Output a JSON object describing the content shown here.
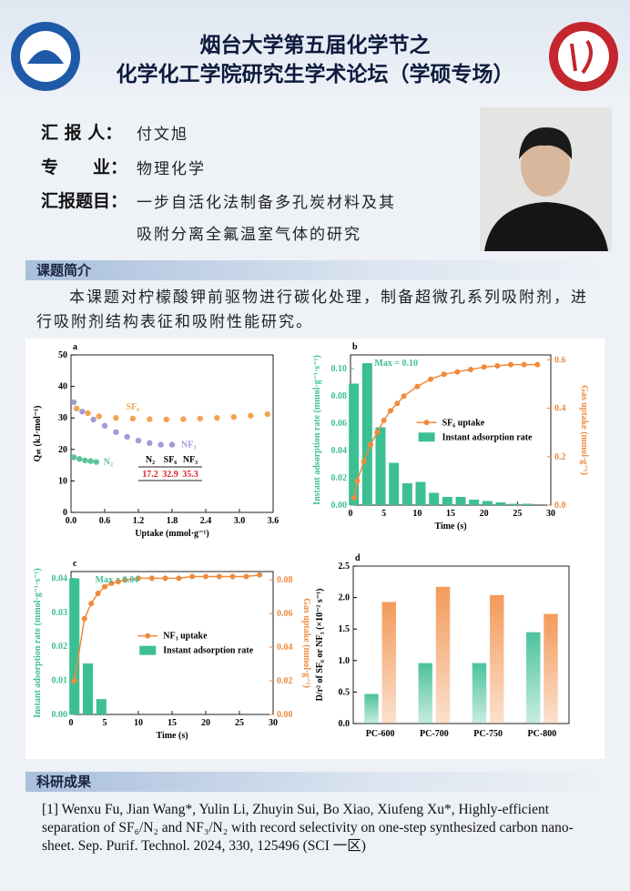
{
  "header": {
    "title_line1": "烟台大学第五届化学节之",
    "title_line2": "化学化工学院研究生学术论坛（学硕专场）"
  },
  "info": [
    {
      "label": "汇 报 人：",
      "value": "付文旭"
    },
    {
      "label": "专　　业：",
      "value": "物理化学"
    },
    {
      "label": "汇报题目：",
      "value": "一步自活化法制备多孔炭材料及其",
      "value2": "吸附分离全氟温室气体的研究"
    }
  ],
  "intro": {
    "title": "课题简介",
    "text": "本课题对柠檬酸钾前驱物进行碳化处理，制备超微孔系列吸附剂，进行吸附剂结构表征和吸附性能研究。"
  },
  "results": {
    "title": "科研成果",
    "text": "[1] Wenxu Fu, Jian Wang*, Yulin Li, Zhuyin Sui, Bo Xiao, Xiufeng Xu*, Highly-efficient separation of SF₆/N₂ and NF₃/N₂ with record selectivity on one-step synthesized carbon nano-sheet. Sep. Purif. Technol. 2024, 330, 125496 (SCI 一区)"
  },
  "chart_data": [
    {
      "type": "scatter",
      "panel": "a",
      "xlabel": "Uptake (mmol·g⁻¹)",
      "ylabel": "Qₛₜ (kJ·mol⁻¹)",
      "xlim": [
        0,
        3.6
      ],
      "xticks": [
        {
          "value": 0,
          "label": "0.0"
        },
        0.6,
        1.2,
        1.8,
        2.4,
        {
          "value": 3,
          "label": "3.0"
        },
        3.6
      ],
      "ylim": [
        0,
        50
      ],
      "yticks": [
        0,
        10,
        20,
        30,
        40,
        50
      ],
      "series": [
        {
          "name": "SF₆",
          "color": "#f2a452",
          "x": [
            0.1,
            0.3,
            0.5,
            0.8,
            1.1,
            1.4,
            1.7,
            2.0,
            2.3,
            2.6,
            2.9,
            3.2,
            3.5
          ],
          "values": [
            33,
            31.5,
            30.5,
            30,
            29.8,
            29.6,
            29.5,
            29.6,
            29.8,
            30,
            30.3,
            30.7,
            31.2
          ]
        },
        {
          "name": "NF₃",
          "color": "#a49ad6",
          "x": [
            0.05,
            0.2,
            0.4,
            0.6,
            0.8,
            1.0,
            1.2,
            1.4,
            1.6,
            1.8
          ],
          "values": [
            35,
            32,
            29.5,
            27.5,
            25.5,
            24,
            22.8,
            22,
            21.5,
            21.5
          ]
        },
        {
          "name": "N₂",
          "color": "#5cc49a",
          "x": [
            0.05,
            0.15,
            0.25,
            0.35,
            0.45
          ],
          "values": [
            17.5,
            17,
            16.5,
            16.3,
            16
          ]
        }
      ],
      "table": {
        "columns": [
          "N₂",
          "SF₆",
          "NF₃"
        ],
        "values": [
          17.2,
          32.9,
          35.3
        ]
      }
    },
    {
      "type": "combo",
      "panel": "b",
      "xlabel": "Time (s)",
      "ylabel": "Instant adsorption rate (mmol·g⁻¹·s⁻¹)",
      "y2label": "Gas uptake (mmol·g⁻¹)",
      "annotation": "Max = 0.10",
      "xlim": [
        0,
        30
      ],
      "xticks": [
        0,
        5,
        10,
        15,
        20,
        25,
        30
      ],
      "ylim": [
        0,
        0.11
      ],
      "yticks": [
        {
          "value": 0,
          "label": "0.00"
        },
        0.02,
        0.04,
        0.06,
        0.08,
        {
          "value": 0.1,
          "label": "0.10"
        }
      ],
      "y2lim": [
        0,
        0.62
      ],
      "y2ticks": [
        {
          "value": 0,
          "label": "0.0"
        },
        0.2,
        0.4,
        0.6
      ],
      "series": [
        {
          "name": "SF₆ uptake",
          "color": "#f08a3c",
          "axis": "y2",
          "x": [
            0.5,
            1,
            2,
            3,
            4,
            5,
            6,
            7,
            8,
            10,
            12,
            14,
            16,
            18,
            20,
            22,
            24,
            26,
            28
          ],
          "values": [
            0.03,
            0.1,
            0.18,
            0.25,
            0.3,
            0.35,
            0.39,
            0.42,
            0.45,
            0.49,
            0.52,
            0.54,
            0.55,
            0.56,
            0.57,
            0.575,
            0.58,
            0.58,
            0.58
          ]
        },
        {
          "name": "Instant adsorption rate",
          "color": "#3dbf94",
          "x": [
            0.5,
            2.5,
            4.5,
            6.5,
            8.5,
            10.5,
            12.5,
            14.5,
            16.5,
            18.5,
            20.5,
            22.5,
            24.5,
            26.5
          ],
          "values": [
            0.089,
            0.104,
            0.057,
            0.031,
            0.016,
            0.017,
            0.009,
            0.006,
            0.006,
            0.004,
            0.003,
            0.002,
            0.001,
            0.001
          ]
        }
      ]
    },
    {
      "type": "combo",
      "panel": "c",
      "xlabel": "Time (s)",
      "ylabel": "Instant adsorption rate (mmol·g⁻¹·s⁻¹)",
      "y2label": "Gas uptake (mmol·g⁻¹)",
      "annotation": "Max = 0.04",
      "xlim": [
        0,
        30
      ],
      "xticks": [
        0,
        5,
        10,
        15,
        20,
        25,
        30
      ],
      "ylim": [
        0,
        0.042
      ],
      "yticks": [
        {
          "value": 0,
          "label": "0.00"
        },
        0.01,
        0.02,
        0.03,
        0.04
      ],
      "y2lim": [
        0,
        0.085
      ],
      "y2ticks": [
        {
          "value": 0,
          "label": "0.00"
        },
        0.02,
        0.04,
        0.06,
        0.08
      ],
      "series": [
        {
          "name": "NF₃ uptake",
          "color": "#f08a3c",
          "axis": "y2",
          "x": [
            0.5,
            2,
            3,
            4,
            5,
            6,
            7,
            8,
            10,
            12,
            14,
            16,
            18,
            20,
            22,
            24,
            26,
            28
          ],
          "values": [
            0.02,
            0.057,
            0.066,
            0.072,
            0.076,
            0.078,
            0.079,
            0.08,
            0.081,
            0.081,
            0.081,
            0.081,
            0.082,
            0.082,
            0.082,
            0.082,
            0.082,
            0.083
          ]
        },
        {
          "name": "Instant adsorption rate",
          "color": "#3dbf94",
          "x": [
            0.5,
            2.5,
            4.5
          ],
          "values": [
            0.04,
            0.015,
            0.0045
          ]
        }
      ]
    },
    {
      "type": "bar",
      "panel": "d",
      "ylabel": "D/r² of SF₆ or NF₃ (×10⁻² s⁻¹)",
      "categories": [
        "PC-600",
        "PC-700",
        "PC-750",
        "PC-800"
      ],
      "ylim": [
        0,
        2.5
      ],
      "yticks": [
        {
          "value": 0,
          "label": "0.0"
        },
        0.5,
        {
          "value": 1,
          "label": "1.0"
        },
        1.5,
        {
          "value": 2,
          "label": "2.0"
        },
        2.5
      ],
      "series": [
        {
          "color": "#4cc29c",
          "values": [
            0.47,
            0.96,
            0.96,
            1.45
          ]
        },
        {
          "color": "#f39a5a",
          "values": [
            1.93,
            2.17,
            2.04,
            1.74
          ]
        }
      ]
    }
  ]
}
